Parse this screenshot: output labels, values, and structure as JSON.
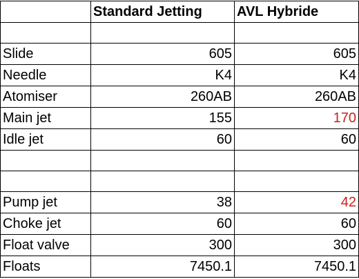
{
  "header": {
    "col1": "",
    "col2": "Standard Jetting",
    "col3": "AVL Hybride"
  },
  "colors": {
    "highlight": "#c9211e",
    "grid": "#000000"
  },
  "rows": [
    {
      "label": "",
      "standard": "",
      "avl": ""
    },
    {
      "label": "Slide",
      "standard": "605",
      "avl": "605"
    },
    {
      "label": "Needle",
      "standard": "K4",
      "avl": "K4"
    },
    {
      "label": "Atomiser",
      "standard": "260AB",
      "avl": "260AB"
    },
    {
      "label": "Main jet",
      "standard": "155",
      "avl": "170"
    },
    {
      "label": "Idle jet",
      "standard": "60",
      "avl": "60"
    },
    {
      "label": "",
      "standard": "",
      "avl": ""
    },
    {
      "label": "",
      "standard": "",
      "avl": ""
    },
    {
      "label": "Pump jet",
      "standard": "38",
      "avl": "42"
    },
    {
      "label": "Choke jet",
      "standard": "60",
      "avl": "60"
    },
    {
      "label": "Float valve",
      "standard": "300",
      "avl": "300"
    },
    {
      "label": "Floats",
      "standard": "7450.1",
      "avl": "7450.1"
    }
  ]
}
